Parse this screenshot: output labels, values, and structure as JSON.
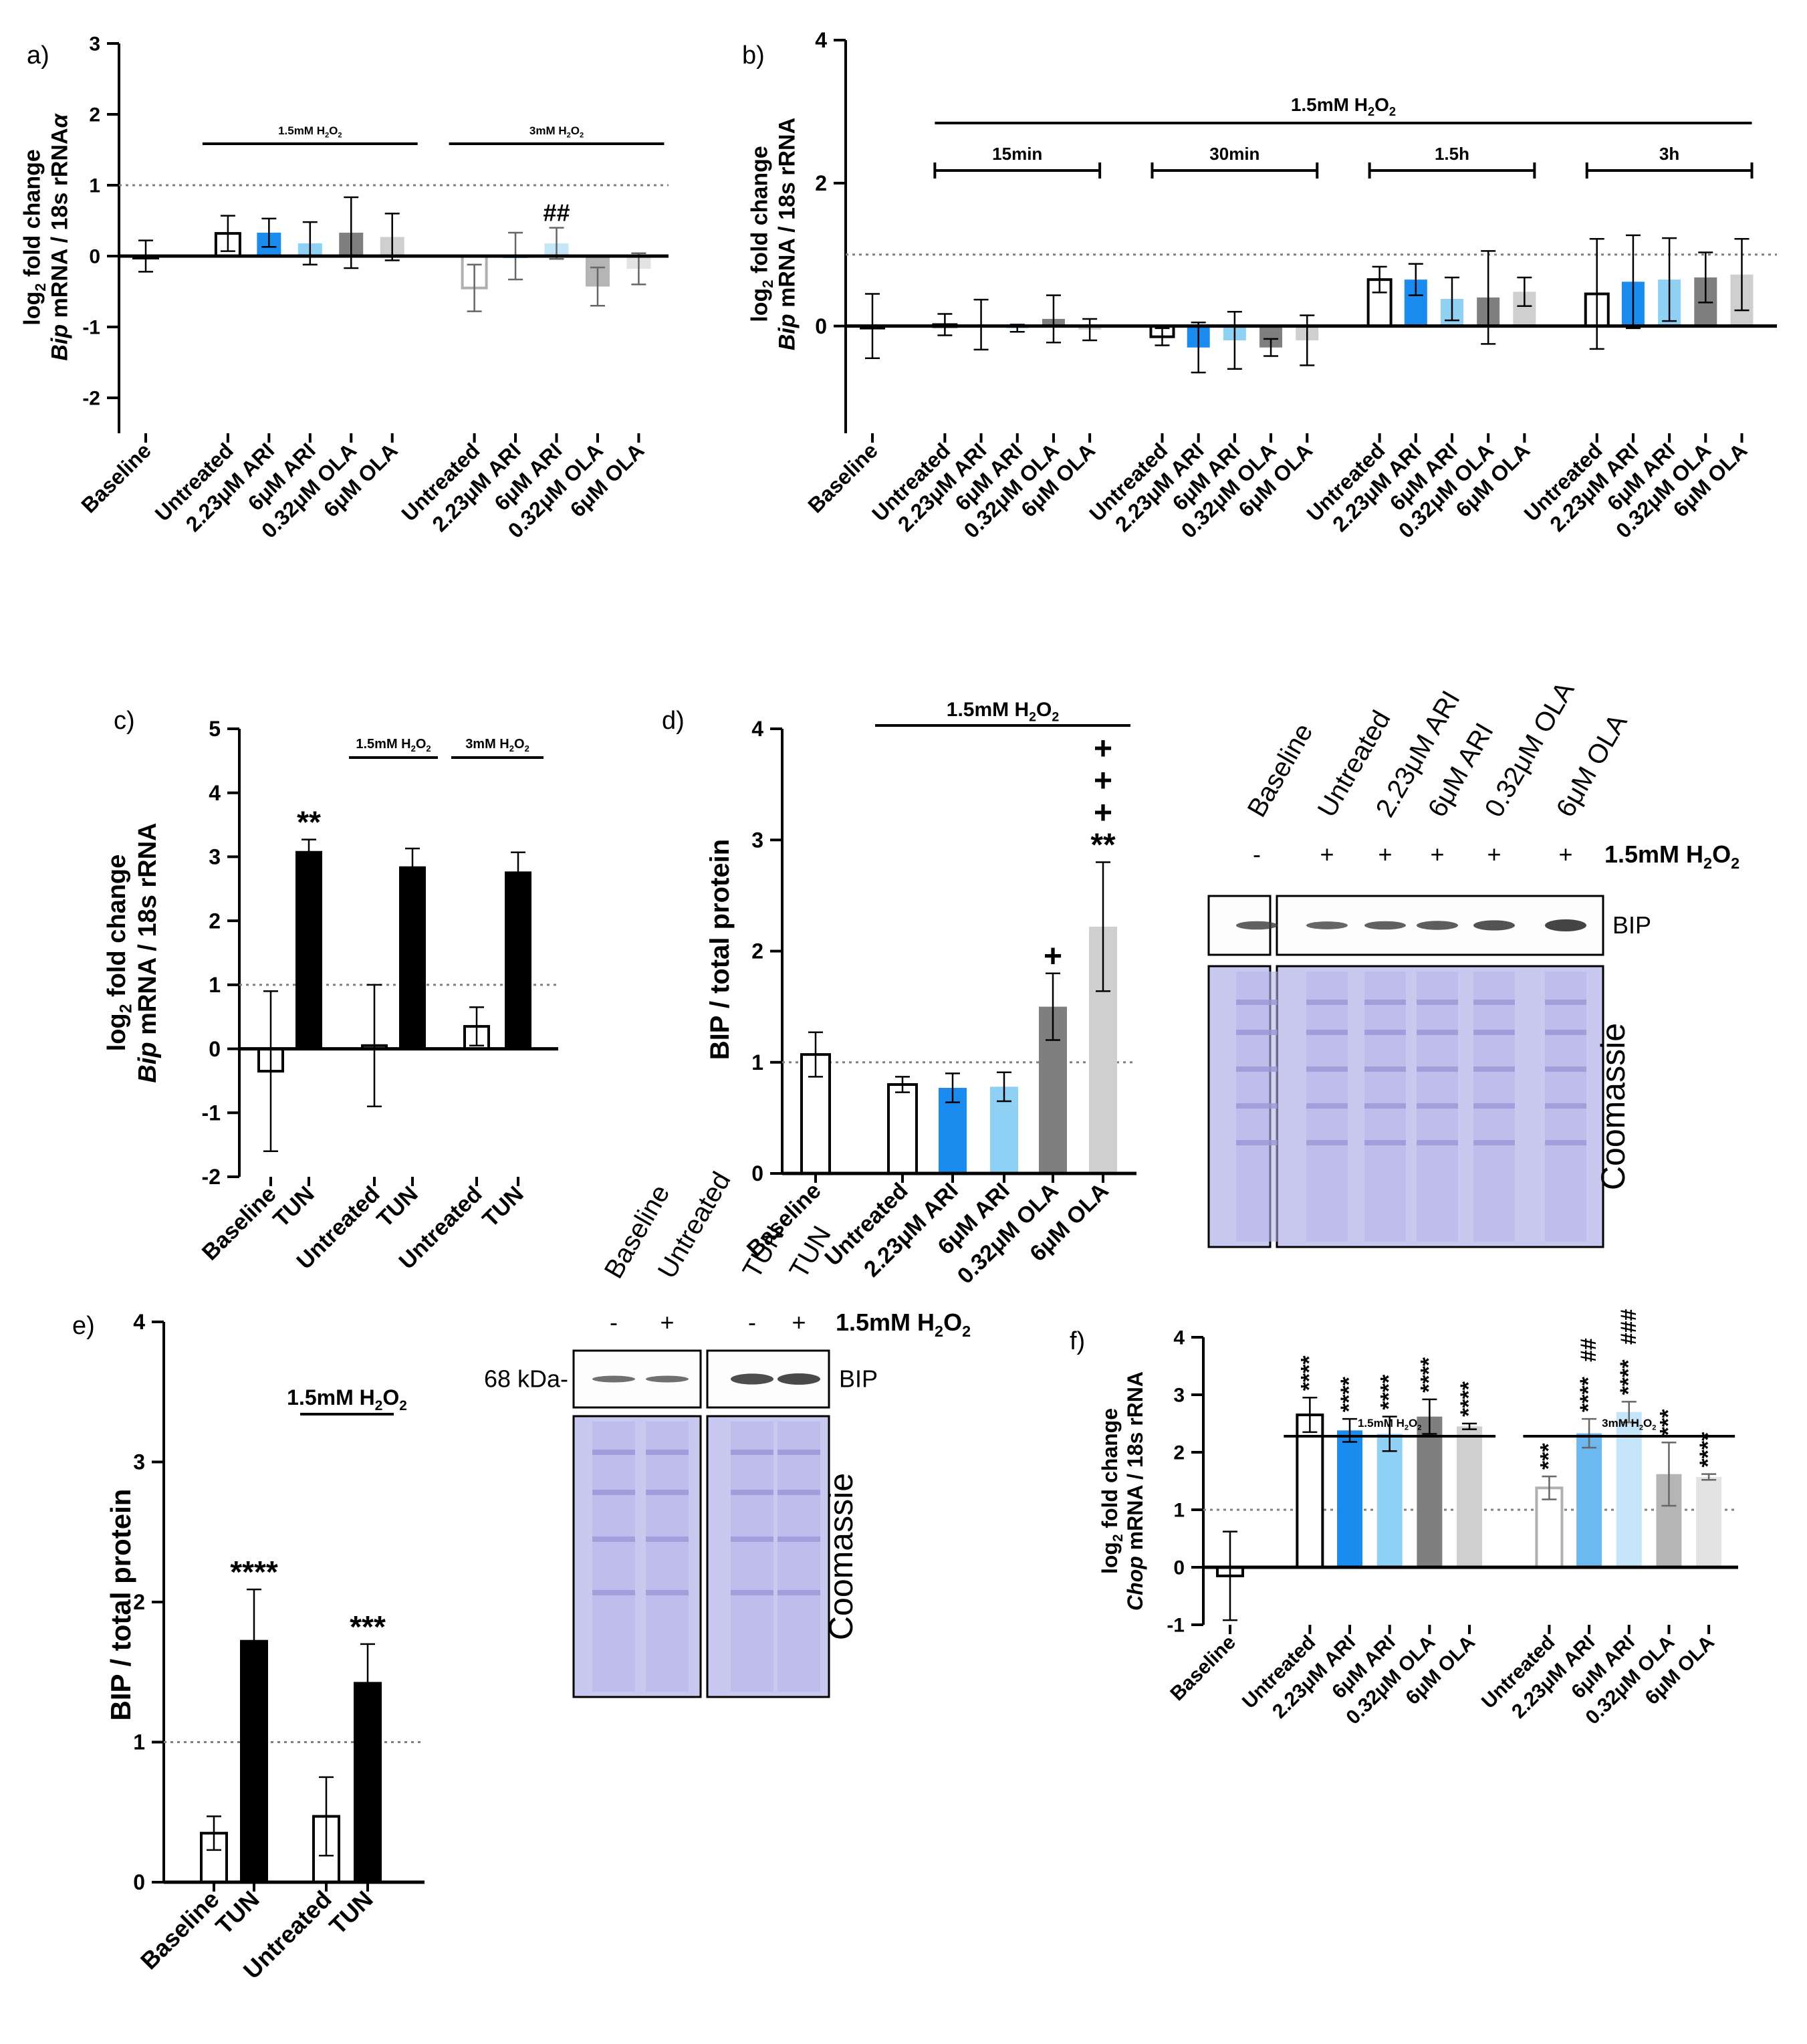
{
  "colors": {
    "white": "#ffffff",
    "black": "#000000",
    "blue": "#1a8cf0",
    "light_blue": "#8fd0f5",
    "dark_gray": "#7f7f7f",
    "light_gray": "#cfcfcf",
    "faded_white": "#ffffff",
    "faded_blue": "#6cb8f0",
    "faded_light_blue": "#c4e6f8",
    "faded_dark_gray": "#b5b5b5",
    "faded_light_gray": "#e3e3e3",
    "annot_blue": "#2a9df4",
    "annot_red": "#ff2a10",
    "gel_band": "#3a3a3a",
    "coomassie": "#c9c9ef",
    "coomassie_band": "#9a96d8"
  },
  "chart_data": [
    {
      "id": "a",
      "panel_label": "a)",
      "type": "bar",
      "ylabel_line1": "log",
      "ylabel_sub": "2",
      "ylabel_line1b": " fold change",
      "ylabel_gene": "Bip",
      "ylabel_line2": " mRNA / 18s rRNA",
      "ylabel_alpha": "α",
      "ylim": [
        -2.5,
        3
      ],
      "yticks": [
        "-2",
        "-1",
        "0",
        "1",
        "2",
        "3"
      ],
      "categories": [
        "Baseline",
        "Untreated",
        "2.23μM ARI",
        "6μM ARI",
        "0.32μM OLA",
        "6μM OLA",
        "Untreated",
        "2.23μM ARI",
        "6μM ARI",
        "0.32μM OLA",
        "6μM OLA"
      ],
      "values": [
        0.0,
        0.32,
        0.33,
        0.18,
        0.33,
        0.27,
        -0.45,
        0.0,
        0.18,
        -0.43,
        -0.18
      ],
      "errors": [
        0.22,
        0.25,
        0.2,
        0.3,
        0.5,
        0.33,
        0.33,
        0.33,
        0.22,
        0.27,
        0.22
      ],
      "colors": [
        "white",
        "white",
        "blue",
        "light_blue",
        "dark_gray",
        "light_gray",
        "faded_white",
        "faded_blue",
        "faded_light_blue",
        "faded_dark_gray",
        "faded_light_gray"
      ],
      "groups": [
        {
          "label": "1.5mM H",
          "sub": "2",
          "tail": "O",
          "sub2": "2",
          "from": 1,
          "to": 5
        },
        {
          "label": "3mM H",
          "sub": "2",
          "tail": "O",
          "sub2": "2",
          "from": 6,
          "to": 10
        }
      ],
      "annotations": [
        {
          "index": 8,
          "text": "##",
          "color": "annot_blue"
        }
      ],
      "reference_line": 1
    },
    {
      "id": "b",
      "panel_label": "b)",
      "type": "bar",
      "ylabel_line1": "log",
      "ylabel_sub": "2",
      "ylabel_line1b": " fold change",
      "ylabel_gene": "Bip",
      "ylabel_line2": " mRNA / 18s rRNA",
      "ylim": [
        -1.5,
        4
      ],
      "yticks": [
        "0",
        "2",
        "4"
      ],
      "categories": [
        "Baseline",
        "Untreated",
        "2.23μM ARI",
        "6μM ARI",
        "0.32μM OLA",
        "6μM OLA",
        "Untreated",
        "2.23μM ARI",
        "6μM ARI",
        "0.32μM OLA",
        "6μM OLA",
        "Untreated",
        "2.23μM ARI",
        "6μM ARI",
        "0.32μM OLA",
        "6μM OLA",
        "Untreated",
        "2.23μM ARI",
        "6μM ARI",
        "0.32μM OLA",
        "6μM OLA"
      ],
      "values": [
        0.0,
        0.02,
        0.02,
        -0.03,
        0.1,
        -0.05,
        -0.15,
        -0.3,
        -0.2,
        -0.3,
        -0.2,
        0.65,
        0.65,
        0.38,
        0.4,
        0.48,
        0.45,
        0.62,
        0.65,
        0.68,
        0.72
      ],
      "errors": [
        0.45,
        0.15,
        0.35,
        0.05,
        0.33,
        0.15,
        0.12,
        0.35,
        0.4,
        0.12,
        0.35,
        0.18,
        0.22,
        0.3,
        0.65,
        0.2,
        0.77,
        0.65,
        0.58,
        0.35,
        0.5
      ],
      "colors": [
        "white",
        "white",
        "blue",
        "light_blue",
        "dark_gray",
        "light_gray",
        "white",
        "blue",
        "light_blue",
        "dark_gray",
        "light_gray",
        "white",
        "blue",
        "light_blue",
        "dark_gray",
        "light_gray",
        "white",
        "blue",
        "light_blue",
        "dark_gray",
        "light_gray"
      ],
      "top_group": {
        "label": "1.5mM H",
        "sub": "2",
        "tail": "O",
        "sub2": "2"
      },
      "groups": [
        {
          "label": "15min",
          "from": 1,
          "to": 5
        },
        {
          "label": "30min",
          "from": 6,
          "to": 10
        },
        {
          "label": "1.5h",
          "from": 11,
          "to": 15
        },
        {
          "label": "3h",
          "from": 16,
          "to": 20
        }
      ],
      "reference_line": 1
    },
    {
      "id": "c",
      "panel_label": "c)",
      "type": "bar",
      "ylabel_line1": "log",
      "ylabel_sub": "2",
      "ylabel_line1b": " fold change",
      "ylabel_gene": "Bip",
      "ylabel_line2": " mRNA / 18s rRNA",
      "ylim": [
        -2,
        5
      ],
      "yticks": [
        "-2",
        "-1",
        "0",
        "1",
        "2",
        "3",
        "4",
        "5"
      ],
      "categories": [
        "Baseline",
        "TUN",
        "Untreated",
        "TUN",
        "Untreated",
        "TUN"
      ],
      "values": [
        -0.35,
        3.07,
        0.05,
        2.83,
        0.35,
        2.75
      ],
      "errors": [
        1.25,
        0.2,
        0.95,
        0.3,
        0.3,
        0.32
      ],
      "colors": [
        "white",
        "black",
        "white",
        "black",
        "white",
        "black"
      ],
      "groups": [
        {
          "label": "1.5mM H",
          "sub": "2",
          "tail": "O",
          "sub2": "2",
          "from": 2,
          "to": 3
        },
        {
          "label": "3mM H",
          "sub": "2",
          "tail": "O",
          "sub2": "2",
          "from": 4,
          "to": 5
        }
      ],
      "annotations": [
        {
          "index": 1,
          "text": "**",
          "color": "black"
        }
      ],
      "reference_line": 1
    },
    {
      "id": "d",
      "panel_label": "d)",
      "type": "bar",
      "ylabel": "BIP / total protein",
      "ylim": [
        0,
        4
      ],
      "yticks": [
        "0",
        "1",
        "2",
        "3",
        "4"
      ],
      "categories": [
        "Baseline",
        "Untreated",
        "2.23μM ARI",
        "6μM ARI",
        "0.32μM OLA",
        "6μM OLA"
      ],
      "values": [
        1.07,
        0.8,
        0.77,
        0.78,
        1.5,
        2.22
      ],
      "errors": [
        0.2,
        0.07,
        0.13,
        0.13,
        0.3,
        0.58
      ],
      "colors": [
        "white",
        "white",
        "blue",
        "light_blue",
        "dark_gray",
        "light_gray"
      ],
      "groups": [
        {
          "label": "1.5mM H",
          "sub": "2",
          "tail": "O",
          "sub2": "2",
          "from": 1,
          "to": 5
        }
      ],
      "annotations": [
        {
          "index": 4,
          "text": "+",
          "color": "annot_red"
        },
        {
          "index": 5,
          "text": "**",
          "color": "black"
        },
        {
          "index": 5,
          "text": "+",
          "color": "annot_red"
        },
        {
          "index": 5,
          "text": "+",
          "color": "annot_red"
        },
        {
          "index": 5,
          "text": "+",
          "color": "annot_red"
        }
      ],
      "reference_line": 1
    },
    {
      "id": "e",
      "panel_label": "e)",
      "type": "bar",
      "ylabel": "BIP / total protein",
      "ylim": [
        0,
        4
      ],
      "yticks": [
        "0",
        "1",
        "2",
        "3",
        "4"
      ],
      "categories": [
        "Baseline",
        "TUN",
        "Untreated",
        "TUN"
      ],
      "values": [
        0.35,
        1.72,
        0.47,
        1.42
      ],
      "errors": [
        0.12,
        0.37,
        0.28,
        0.28
      ],
      "colors": [
        "white",
        "black",
        "white",
        "black"
      ],
      "groups": [
        {
          "label": "1.5mM H",
          "sub": "2",
          "tail": "O",
          "sub2": "2",
          "from": 2,
          "to": 3
        }
      ],
      "annotations": [
        {
          "index": 1,
          "text": "****",
          "color": "black"
        },
        {
          "index": 3,
          "text": "***",
          "color": "black"
        }
      ],
      "reference_line": 1
    },
    {
      "id": "f",
      "panel_label": "f)",
      "type": "bar",
      "ylabel_line1": "log",
      "ylabel_sub": "2",
      "ylabel_line1b": " fold change",
      "ylabel_gene": "Chop",
      "ylabel_line2": " mRNA / 18s rRNA",
      "ylim": [
        -1,
        4
      ],
      "yticks": [
        "-1",
        "0",
        "1",
        "2",
        "3",
        "4"
      ],
      "categories": [
        "Baseline",
        "Untreated",
        "2.23μM ARI",
        "6μM ARI",
        "0.32μM OLA",
        "6μM OLA",
        "Untreated",
        "2.23μM ARI",
        "6μM ARI",
        "0.32μM OLA",
        "6μM OLA"
      ],
      "values": [
        -0.15,
        2.65,
        2.38,
        2.32,
        2.62,
        2.45,
        1.38,
        2.33,
        2.7,
        1.62,
        1.57
      ],
      "errors": [
        0.77,
        0.3,
        0.2,
        0.3,
        0.3,
        0.05,
        0.2,
        0.25,
        0.18,
        0.55,
        0.05
      ],
      "colors": [
        "white",
        "white",
        "blue",
        "light_blue",
        "dark_gray",
        "light_gray",
        "faded_white",
        "faded_blue",
        "faded_light_blue",
        "faded_dark_gray",
        "faded_light_gray"
      ],
      "groups": [
        {
          "label": "1.5mM H",
          "sub": "2",
          "tail": "O",
          "sub2": "2",
          "from": 1,
          "to": 5
        },
        {
          "label": "3mM H",
          "sub": "2",
          "tail": "O",
          "sub2": "2",
          "from": 6,
          "to": 10
        }
      ],
      "annotations": [
        {
          "index": 1,
          "text": "****",
          "color": "black"
        },
        {
          "index": 2,
          "text": "****",
          "color": "black"
        },
        {
          "index": 3,
          "text": "****",
          "color": "black"
        },
        {
          "index": 4,
          "text": "****",
          "color": "black"
        },
        {
          "index": 5,
          "text": "****",
          "color": "black"
        },
        {
          "index": 6,
          "text": "***",
          "color": "black"
        },
        {
          "index": 7,
          "text": "****",
          "color": "black"
        },
        {
          "index": 7,
          "text": "##",
          "color": "annot_blue"
        },
        {
          "index": 8,
          "text": "****",
          "color": "black"
        },
        {
          "index": 8,
          "text": "###",
          "color": "annot_blue"
        },
        {
          "index": 9,
          "text": "***",
          "color": "black"
        },
        {
          "index": 10,
          "text": "****",
          "color": "black"
        }
      ],
      "reference_line": 1
    }
  ],
  "blots": {
    "d": {
      "lanes": [
        "Baseline",
        "Untreated",
        "2.23μM ARI",
        "6μM ARI",
        "0.32μM OLA",
        "6μM OLA"
      ],
      "treatment_signs": [
        "-",
        "+",
        "+",
        "+",
        "+",
        "+"
      ],
      "treatment_label": "1.5mM H",
      "treatment_sub": "2",
      "treatment_tail": "O",
      "treatment_sub2": "2",
      "band_label": "BIP",
      "stain_label": "Coomassie"
    },
    "e": {
      "lanes": [
        "Baseline",
        "Untreated",
        "TUN",
        "TUN"
      ],
      "treatment_signs": [
        "-",
        "+",
        "-",
        "+"
      ],
      "treatment_label": "1.5mM H",
      "treatment_sub": "2",
      "treatment_tail": "O",
      "treatment_sub2": "2",
      "band_label": "BIP",
      "marker_label": "68 kDa-",
      "stain_label": "Coomassie"
    }
  }
}
